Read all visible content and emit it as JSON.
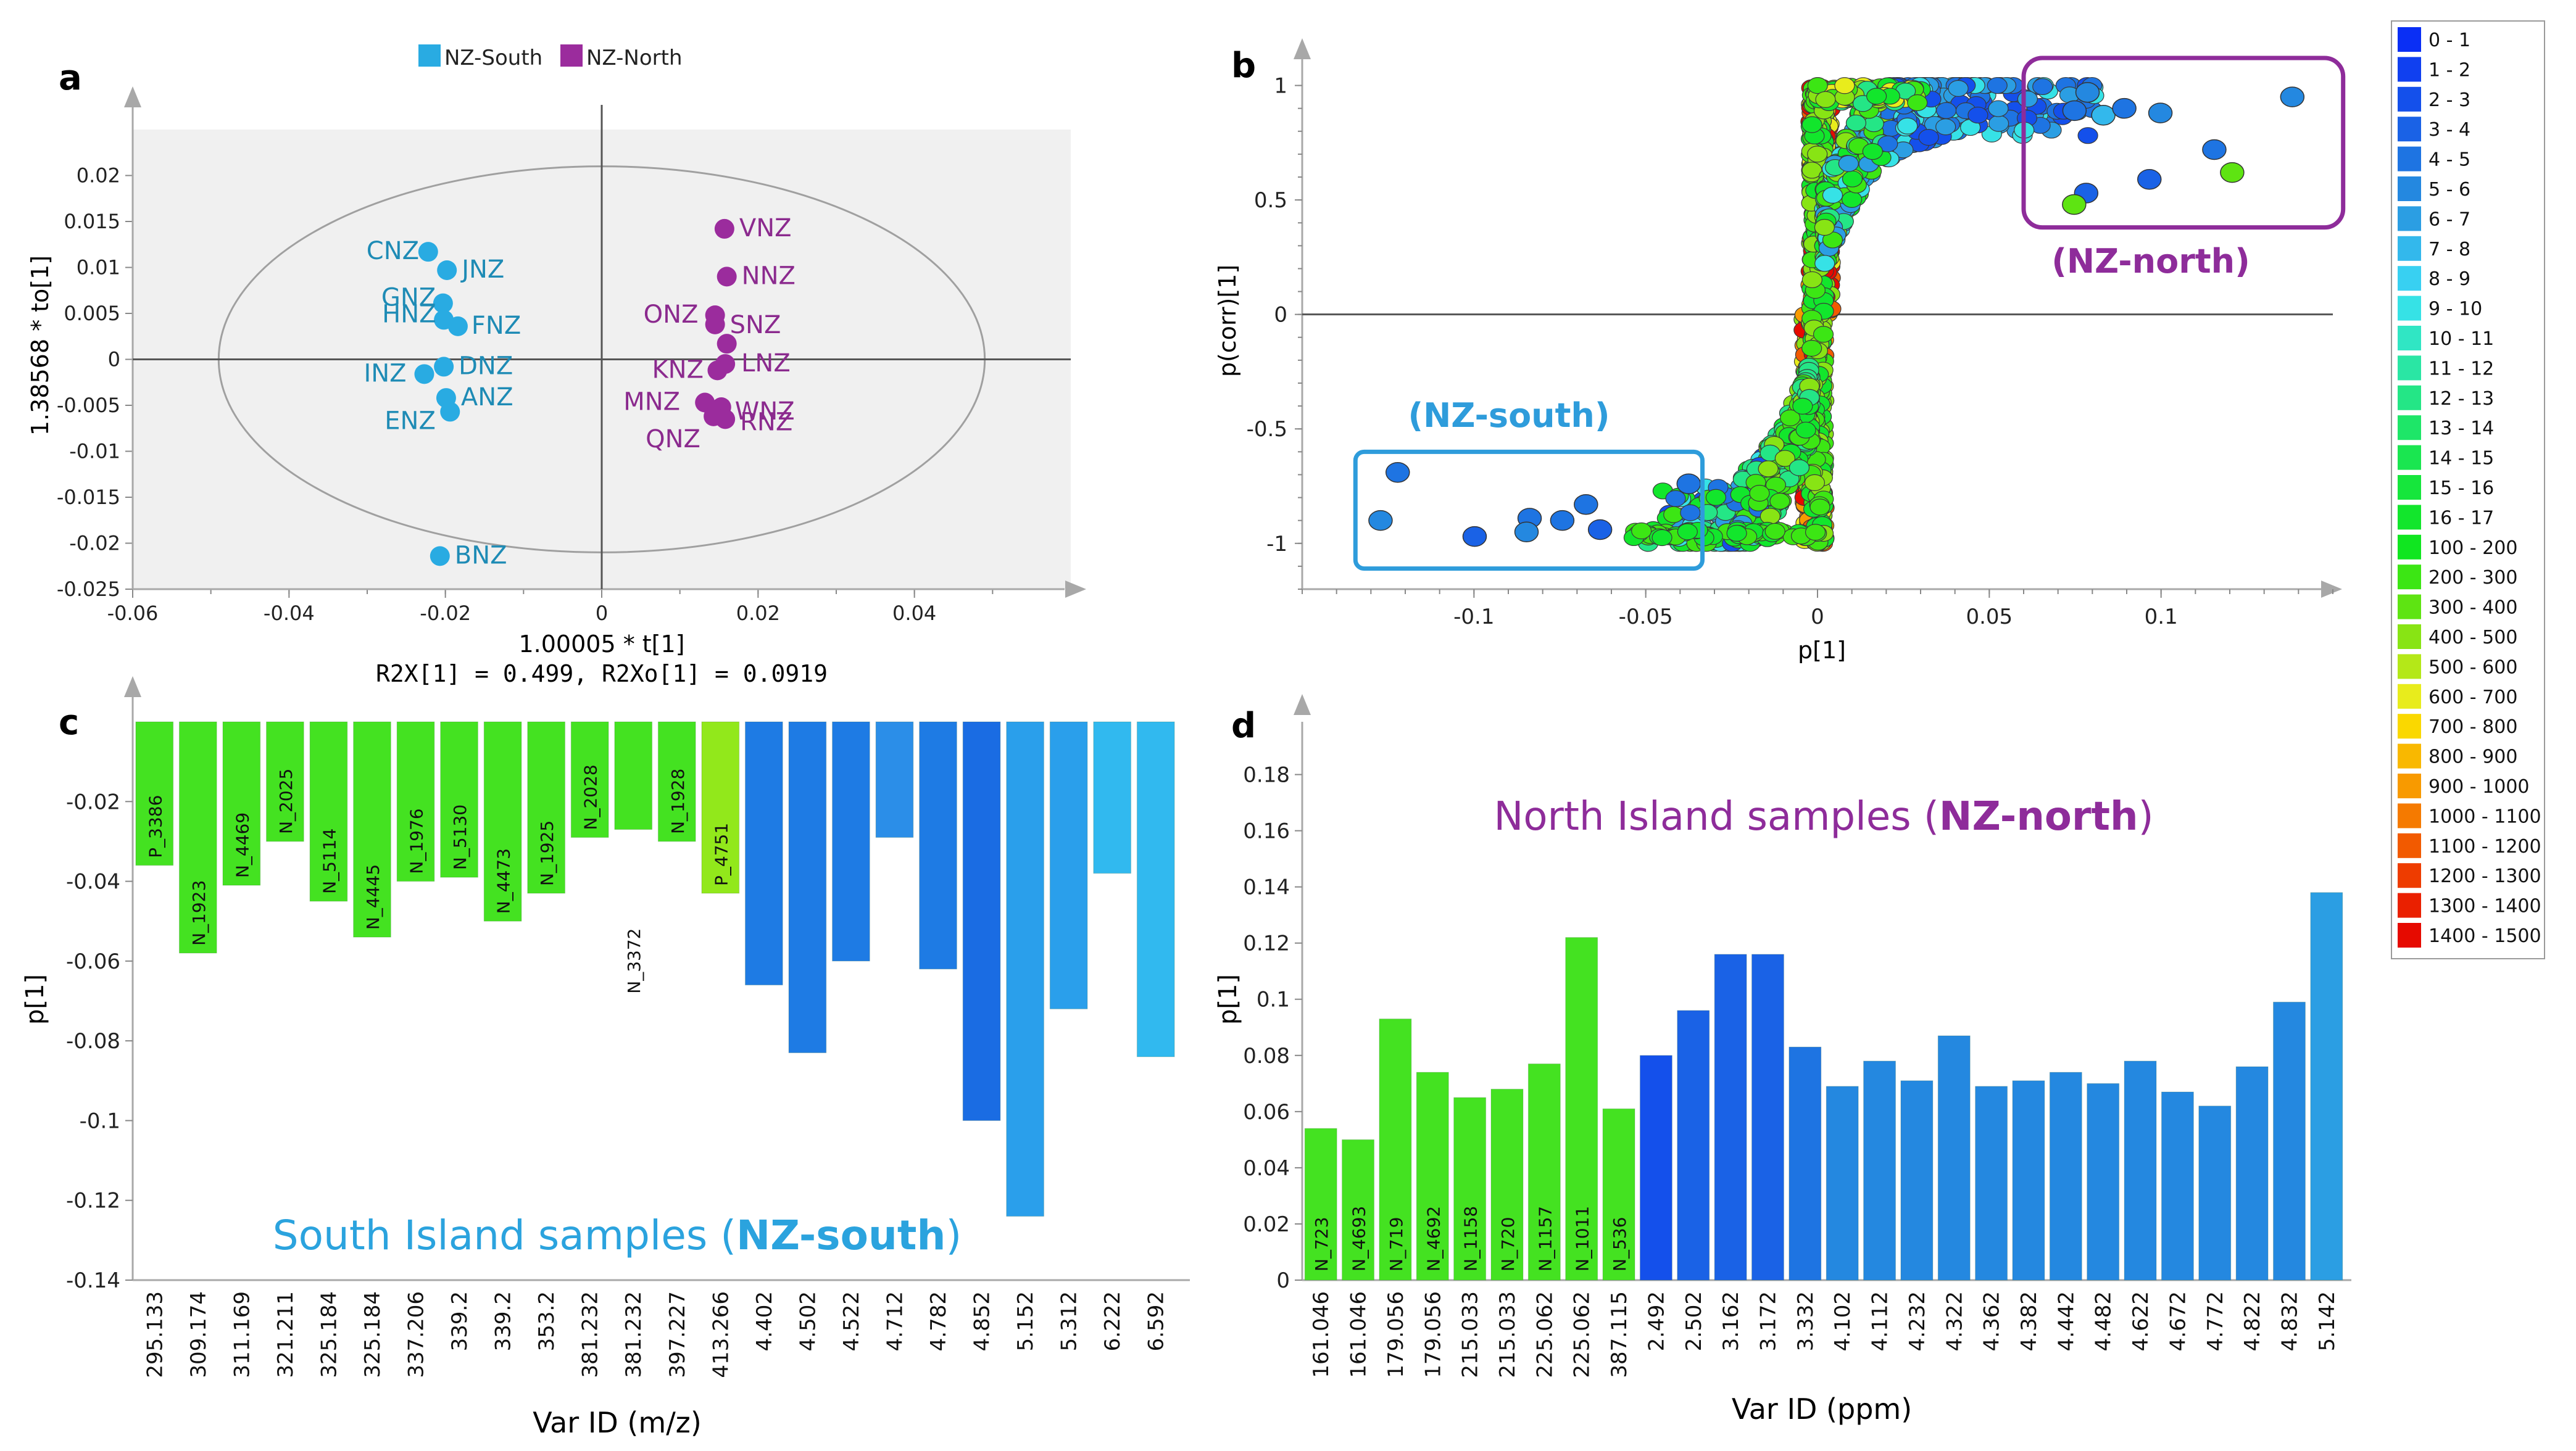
{
  "panels": {
    "a": {
      "label": "a",
      "legend": [
        {
          "name": "NZ-South",
          "color": "#29ABE2"
        },
        {
          "name": "NZ-North",
          "color": "#9B2C9D"
        }
      ],
      "xlabel": "1.00005 * t[1]",
      "ylabel": "1.38568 * to[1]",
      "stats": "R2X[1] = 0.499, R2Xo[1] = 0.0919",
      "xticks": [
        "-0.06",
        "-0.04",
        "-0.02",
        "0",
        "0.02",
        "0.04"
      ],
      "yticks": [
        "0.02",
        "0.015",
        "0.01",
        "0.005",
        "0",
        "-0.005",
        "-0.01",
        "-0.015",
        "-0.02",
        "-0.025"
      ]
    },
    "b": {
      "label": "b",
      "xlabel": "p[1]",
      "ylabel": "p(corr)[1]",
      "xticks": [
        "-0.1",
        "-0.05",
        "0",
        "0.05",
        "0.1"
      ],
      "yticks": [
        "1",
        "0.5",
        "0",
        "-0.5",
        "-1"
      ],
      "box_south_label": "(NZ-south)",
      "box_north_label": "(NZ-north)"
    },
    "c": {
      "label": "c",
      "xlabel": "Var ID (m/z)",
      "ylabel": "p[1]",
      "annotation_prefix": "South Island samples (",
      "annotation_bold": "NZ-south",
      "annotation_suffix": ")",
      "yticks": [
        "-0.02",
        "-0.04",
        "-0.06",
        "-0.08",
        "-0.1",
        "-0.12",
        "-0.14"
      ]
    },
    "d": {
      "label": "d",
      "xlabel": "Var ID (ppm)",
      "ylabel": "p[1]",
      "annotation_prefix": "North Island samples (",
      "annotation_bold": "NZ-north",
      "annotation_suffix": ")",
      "yticks": [
        "0",
        "0.02",
        "0.04",
        "0.06",
        "0.08",
        "0.1",
        "0.12",
        "0.14",
        "0.16",
        "0.18"
      ]
    }
  },
  "colorbar": {
    "bins": [
      {
        "label": "0 - 1",
        "color": "#0A2FF5"
      },
      {
        "label": "1 - 2",
        "color": "#1040F0"
      },
      {
        "label": "2 - 3",
        "color": "#1450EB"
      },
      {
        "label": "3 - 4",
        "color": "#1A62E6"
      },
      {
        "label": "4 - 5",
        "color": "#1E74E2"
      },
      {
        "label": "5 - 6",
        "color": "#2488E0"
      },
      {
        "label": "6 - 7",
        "color": "#2B9EE3"
      },
      {
        "label": "7 - 8",
        "color": "#33B8EC"
      },
      {
        "label": "8 - 9",
        "color": "#38D0F2"
      },
      {
        "label": "9 - 10",
        "color": "#36E2E6"
      },
      {
        "label": "10 - 11",
        "color": "#30E6C4"
      },
      {
        "label": "11 - 12",
        "color": "#2AE6A4"
      },
      {
        "label": "12 - 13",
        "color": "#24E686"
      },
      {
        "label": "13 - 14",
        "color": "#1EE668"
      },
      {
        "label": "14 - 15",
        "color": "#1AE650"
      },
      {
        "label": "15 - 16",
        "color": "#16E63C"
      },
      {
        "label": "16 - 17",
        "color": "#12E62C"
      },
      {
        "label": "100 - 200",
        "color": "#10E620"
      },
      {
        "label": "200 - 300",
        "color": "#3CE614"
      },
      {
        "label": "300 - 400",
        "color": "#5EE412"
      },
      {
        "label": "400 - 500",
        "color": "#88E414"
      },
      {
        "label": "500 - 600",
        "color": "#B4E818"
      },
      {
        "label": "600 - 700",
        "color": "#E8EC1C"
      },
      {
        "label": "700 - 800",
        "color": "#FAD800"
      },
      {
        "label": "800 - 900",
        "color": "#F9B800"
      },
      {
        "label": "900 - 1000",
        "color": "#F89A00"
      },
      {
        "label": "1000 - 1100",
        "color": "#F57A00"
      },
      {
        "label": "1100 - 1200",
        "color": "#F25A00"
      },
      {
        "label": "1200 - 1300",
        "color": "#EE3C00"
      },
      {
        "label": "1300 - 1400",
        "color": "#EA2000"
      },
      {
        "label": "1400 - 1500",
        "color": "#E60A00"
      }
    ]
  },
  "chart_data": [
    {
      "id": "a",
      "type": "scatter",
      "title": "",
      "xlabel": "1.00005 * t[1]",
      "ylabel": "1.38568 * to[1]",
      "xlim": [
        -0.06,
        0.06
      ],
      "ylim": [
        -0.025,
        0.025
      ],
      "ellipse": {
        "cx": 0,
        "cy": 0,
        "rx": 0.049,
        "ry": 0.021
      },
      "series": [
        {
          "name": "NZ-South",
          "color": "#29ABE2",
          "points": [
            {
              "label": "CNZ",
              "x": -0.0222,
              "y": 0.0117
            },
            {
              "label": "JNZ",
              "x": -0.0198,
              "y": 0.0097
            },
            {
              "label": "GNZ",
              "x": -0.0203,
              "y": 0.0061
            },
            {
              "label": "HNZ",
              "x": -0.0202,
              "y": 0.0043
            },
            {
              "label": "FNZ",
              "x": -0.0184,
              "y": 0.0036
            },
            {
              "label": "DNZ",
              "x": -0.0202,
              "y": -0.0008
            },
            {
              "label": "INZ",
              "x": -0.0227,
              "y": -0.0016
            },
            {
              "label": "ANZ",
              "x": -0.0199,
              "y": -0.0042
            },
            {
              "label": "ENZ",
              "x": -0.0194,
              "y": -0.0057
            },
            {
              "label": "BNZ",
              "x": -0.0207,
              "y": -0.0214
            }
          ]
        },
        {
          "name": "NZ-North",
          "color": "#9B2C9D",
          "points": [
            {
              "label": "VNZ",
              "x": 0.0157,
              "y": 0.0142
            },
            {
              "label": "NNZ",
              "x": 0.016,
              "y": 0.009
            },
            {
              "label": "ONZ",
              "x": 0.0145,
              "y": 0.0048
            },
            {
              "label": "SNZ",
              "x": 0.0145,
              "y": 0.0038
            },
            {
              "label": "",
              "x": 0.016,
              "y": 0.0017
            },
            {
              "label": "LNZ",
              "x": 0.0158,
              "y": -0.0005
            },
            {
              "label": "KNZ",
              "x": 0.0148,
              "y": -0.0012
            },
            {
              "label": "MNZ",
              "x": 0.0132,
              "y": -0.0047
            },
            {
              "label": "WNZ",
              "x": 0.0153,
              "y": -0.0052
            },
            {
              "label": "RNZ",
              "x": 0.0158,
              "y": -0.0065
            },
            {
              "label": "QNZ",
              "x": 0.0143,
              "y": -0.0062
            }
          ]
        }
      ]
    },
    {
      "id": "b",
      "type": "scatter",
      "title": "",
      "xlabel": "p[1]",
      "ylabel": "p(corr)[1]",
      "xlim": [
        -0.15,
        0.15
      ],
      "ylim": [
        -1.2,
        1.05
      ],
      "box_south": {
        "x": [
          -0.1345,
          -0.0335
        ],
        "y": [
          -0.6,
          -1.11
        ]
      },
      "box_north": {
        "x": [
          0.06,
          0.153
        ],
        "y": [
          1.12,
          0.38
        ]
      },
      "highlighted_points": [
        {
          "x": -0.1222,
          "y": -0.69,
          "bin": "4 - 5"
        },
        {
          "x": -0.1272,
          "y": -0.9,
          "bin": "5 - 6"
        },
        {
          "x": -0.0998,
          "y": -0.97,
          "bin": "3 - 4"
        },
        {
          "x": -0.0838,
          "y": -0.89,
          "bin": "4 - 5"
        },
        {
          "x": -0.0847,
          "y": -0.95,
          "bin": "5 - 6"
        },
        {
          "x": -0.0743,
          "y": -0.9,
          "bin": "4 - 5"
        },
        {
          "x": -0.0674,
          "y": -0.83,
          "bin": "4 - 5"
        },
        {
          "x": -0.0633,
          "y": -0.94,
          "bin": "3 - 4"
        },
        {
          "x": -0.0375,
          "y": -0.74,
          "bin": "4 - 5"
        },
        {
          "x": 0.0748,
          "y": 0.89,
          "bin": "4 - 5"
        },
        {
          "x": 0.0786,
          "y": 0.97,
          "bin": "5 - 6"
        },
        {
          "x": 0.0832,
          "y": 0.87,
          "bin": "7 - 8"
        },
        {
          "x": 0.0893,
          "y": 0.9,
          "bin": "4 - 5"
        },
        {
          "x": 0.0998,
          "y": 0.88,
          "bin": "5 - 6"
        },
        {
          "x": 0.1155,
          "y": 0.72,
          "bin": "4 - 5"
        },
        {
          "x": 0.1382,
          "y": 0.95,
          "bin": "5 - 6"
        },
        {
          "x": 0.0782,
          "y": 0.53,
          "bin": "3 - 4"
        },
        {
          "x": 0.0747,
          "y": 0.48,
          "bin": "300 - 400"
        },
        {
          "x": 0.0966,
          "y": 0.59,
          "bin": "3 - 4"
        },
        {
          "x": 0.1207,
          "y": 0.62,
          "bin": "300 - 400"
        }
      ]
    },
    {
      "id": "c",
      "type": "bar",
      "title": "South Island samples (NZ-south)",
      "xlabel": "Var ID (m/z)",
      "ylabel": "p[1]",
      "ylim": [
        -0.14,
        0
      ],
      "bars": [
        {
          "category": "295.133",
          "value": -0.036,
          "name": "P_3386",
          "color": "#44E221"
        },
        {
          "category": "309.174",
          "value": -0.058,
          "name": "N_1923",
          "color": "#44E221"
        },
        {
          "category": "311.169",
          "value": -0.041,
          "name": "N_4469",
          "color": "#44E221"
        },
        {
          "category": "321.211",
          "value": -0.03,
          "name": "N_2025",
          "color": "#44E221"
        },
        {
          "category": "325.184",
          "value": -0.045,
          "name": "N_5114",
          "color": "#44E221"
        },
        {
          "category": "325.184",
          "value": -0.054,
          "name": "N_4445",
          "color": "#44E221"
        },
        {
          "category": "337.206",
          "value": -0.04,
          "name": "N_1976",
          "color": "#44E221"
        },
        {
          "category": "339.2",
          "value": -0.039,
          "name": "N_5130",
          "color": "#44E221"
        },
        {
          "category": "339.2",
          "value": -0.05,
          "name": "N_4473",
          "color": "#44E221"
        },
        {
          "category": "353.2",
          "value": -0.043,
          "name": "N_1925",
          "color": "#44E221"
        },
        {
          "category": "381.232",
          "value": -0.029,
          "name": "N_2028",
          "color": "#44E221"
        },
        {
          "category": "381.232",
          "value": -0.027,
          "name": "N_3372",
          "color": "#44E221"
        },
        {
          "category": "397.227",
          "value": -0.03,
          "name": "N_1928",
          "color": "#44E221"
        },
        {
          "category": "413.266",
          "value": -0.043,
          "name": "P_4751",
          "color": "#92E81B"
        },
        {
          "category": "4.402",
          "value": -0.066,
          "name": "",
          "color": "#1E7BE4"
        },
        {
          "category": "4.502",
          "value": -0.083,
          "name": "",
          "color": "#1E7BE4"
        },
        {
          "category": "4.522",
          "value": -0.06,
          "name": "",
          "color": "#1E7BE4"
        },
        {
          "category": "4.712",
          "value": -0.029,
          "name": "",
          "color": "#2B8EE8"
        },
        {
          "category": "4.782",
          "value": -0.062,
          "name": "",
          "color": "#1E7BE4"
        },
        {
          "category": "4.852",
          "value": -0.1,
          "name": "",
          "color": "#1A6CE3"
        },
        {
          "category": "5.152",
          "value": -0.124,
          "name": "",
          "color": "#2A9FEB"
        },
        {
          "category": "5.312",
          "value": -0.072,
          "name": "",
          "color": "#2A9FEB"
        },
        {
          "category": "6.222",
          "value": -0.038,
          "name": "",
          "color": "#31B9EF"
        },
        {
          "category": "6.592",
          "value": -0.084,
          "name": "",
          "color": "#31B9EF"
        }
      ]
    },
    {
      "id": "d",
      "type": "bar",
      "title": "North Island samples (NZ-north)",
      "xlabel": "Var ID (ppm)",
      "ylabel": "p[1]",
      "ylim": [
        0,
        0.19
      ],
      "bars": [
        {
          "category": "161.046",
          "value": 0.054,
          "name": "N_723",
          "color": "#44E221"
        },
        {
          "category": "161.046",
          "value": 0.05,
          "name": "N_4693",
          "color": "#44E221"
        },
        {
          "category": "179.056",
          "value": 0.093,
          "name": "N_719",
          "color": "#44E221"
        },
        {
          "category": "179.056",
          "value": 0.074,
          "name": "N_4692",
          "color": "#44E221"
        },
        {
          "category": "215.033",
          "value": 0.065,
          "name": "N_1158",
          "color": "#44E221"
        },
        {
          "category": "215.033",
          "value": 0.068,
          "name": "N_720",
          "color": "#44E221"
        },
        {
          "category": "225.062",
          "value": 0.077,
          "name": "N_1157",
          "color": "#44E221"
        },
        {
          "category": "225.062",
          "value": 0.122,
          "name": "N_1011",
          "color": "#44E221"
        },
        {
          "category": "387.115",
          "value": 0.061,
          "name": "N_536",
          "color": "#44E221"
        },
        {
          "category": "2.492",
          "value": 0.08,
          "name": "",
          "color": "#1450EB"
        },
        {
          "category": "2.502",
          "value": 0.096,
          "name": "",
          "color": "#1A62E6"
        },
        {
          "category": "3.162",
          "value": 0.116,
          "name": "",
          "color": "#1A62E6"
        },
        {
          "category": "3.172",
          "value": 0.116,
          "name": "",
          "color": "#1A62E6"
        },
        {
          "category": "3.332",
          "value": 0.083,
          "name": "",
          "color": "#1E74E2"
        },
        {
          "category": "4.102",
          "value": 0.069,
          "name": "",
          "color": "#2488E0"
        },
        {
          "category": "4.112",
          "value": 0.078,
          "name": "",
          "color": "#2488E0"
        },
        {
          "category": "4.232",
          "value": 0.071,
          "name": "",
          "color": "#2488E0"
        },
        {
          "category": "4.322",
          "value": 0.087,
          "name": "",
          "color": "#2488E0"
        },
        {
          "category": "4.362",
          "value": 0.069,
          "name": "",
          "color": "#2488E0"
        },
        {
          "category": "4.382",
          "value": 0.071,
          "name": "",
          "color": "#2488E0"
        },
        {
          "category": "4.442",
          "value": 0.074,
          "name": "",
          "color": "#2488E0"
        },
        {
          "category": "4.482",
          "value": 0.07,
          "name": "",
          "color": "#2488E0"
        },
        {
          "category": "4.622",
          "value": 0.078,
          "name": "",
          "color": "#2488E0"
        },
        {
          "category": "4.672",
          "value": 0.067,
          "name": "",
          "color": "#2488E0"
        },
        {
          "category": "4.772",
          "value": 0.062,
          "name": "",
          "color": "#2488E0"
        },
        {
          "category": "4.822",
          "value": 0.076,
          "name": "",
          "color": "#2488E0"
        },
        {
          "category": "4.832",
          "value": 0.099,
          "name": "",
          "color": "#2488E0"
        },
        {
          "category": "5.142",
          "value": 0.138,
          "name": "",
          "color": "#2B9EE3"
        }
      ]
    }
  ]
}
